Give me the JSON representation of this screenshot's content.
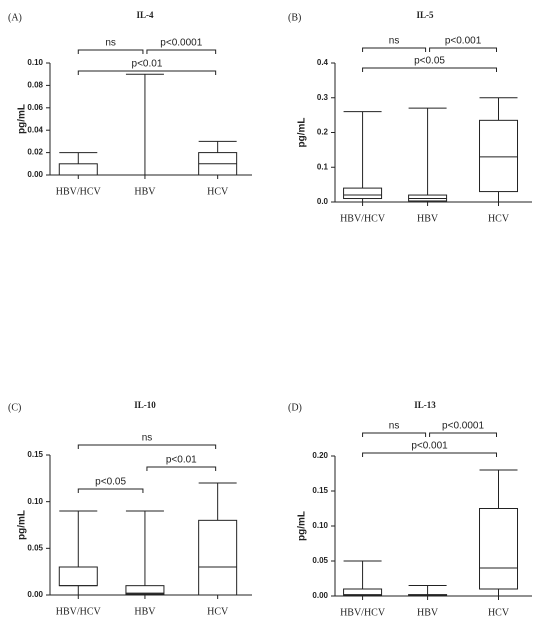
{
  "chart_data": [
    {
      "type": "box",
      "panel": "(A)",
      "title": "IL-4",
      "ylabel": "pg/mL",
      "color": "#222222",
      "categories": [
        "HBV/HCV",
        "HBV",
        "HCV"
      ],
      "boxes": [
        {
          "min": 0,
          "q1": 0,
          "median": 0,
          "q3": 0.01,
          "max": 0.02
        },
        {
          "min": 0,
          "q1": 0,
          "median": 0,
          "q3": 0,
          "max": 0.09
        },
        {
          "min": 0,
          "q1": 0,
          "median": 0.01,
          "q3": 0.02,
          "max": 0.03
        }
      ],
      "ylim": [
        0,
        0.1
      ],
      "yticks": [
        {
          "value": 0,
          "label": "0.00"
        },
        {
          "value": 0.02,
          "label": "0.02"
        },
        {
          "value": 0.04,
          "label": "0.04"
        },
        {
          "value": 0.06,
          "label": "0.06"
        },
        {
          "value": 0.08,
          "label": "0.08"
        },
        {
          "value": 0.1,
          "label": "0.10"
        }
      ],
      "annotations": [
        {
          "from": 0,
          "to": 1,
          "text": "ns"
        },
        {
          "from": 1,
          "to": 2,
          "text": "p<0.0001"
        },
        {
          "from": 0,
          "to": 2,
          "text": "p<0.01"
        }
      ]
    },
    {
      "type": "box",
      "panel": "(B)",
      "title": "IL-5",
      "ylabel": "pg/mL",
      "color": "#222222",
      "categories": [
        "HBV/HCV",
        "HBV",
        "HCV"
      ],
      "boxes": [
        {
          "min": 0,
          "q1": 0.01,
          "median": 0.02,
          "q3": 0.04,
          "max": 0.26
        },
        {
          "min": 0,
          "q1": 0.003,
          "median": 0.01,
          "q3": 0.02,
          "max": 0.27
        },
        {
          "min": 0,
          "q1": 0.03,
          "median": 0.13,
          "q3": 0.235,
          "max": 0.3
        }
      ],
      "ylim": [
        0,
        0.4
      ],
      "yticks": [
        {
          "value": 0,
          "label": "0.0"
        },
        {
          "value": 0.1,
          "label": "0.1"
        },
        {
          "value": 0.2,
          "label": "0.2"
        },
        {
          "value": 0.3,
          "label": "0.3"
        },
        {
          "value": 0.4,
          "label": "0.4"
        }
      ],
      "annotations": [
        {
          "from": 0,
          "to": 1,
          "text": "ns"
        },
        {
          "from": 1,
          "to": 2,
          "text": "p<0.001"
        },
        {
          "from": 0,
          "to": 2,
          "text": "p<0.05"
        }
      ]
    },
    {
      "type": "box",
      "panel": "(C)",
      "title": "IL-10",
      "ylabel": "pg/mL",
      "color": "#222222",
      "categories": [
        "HBV/HCV",
        "HBV",
        "HCV"
      ],
      "boxes": [
        {
          "min": 0,
          "q1": 0.01,
          "median": 0.01,
          "q3": 0.03,
          "max": 0.09
        },
        {
          "min": 0,
          "q1": 0.001,
          "median": 0.002,
          "q3": 0.01,
          "max": 0.09
        },
        {
          "min": 0,
          "q1": 0,
          "median": 0.03,
          "q3": 0.08,
          "max": 0.12
        }
      ],
      "ylim": [
        0,
        0.15
      ],
      "yticks": [
        {
          "value": 0,
          "label": "0.00"
        },
        {
          "value": 0.05,
          "label": "0.05"
        },
        {
          "value": 0.1,
          "label": "0.10"
        },
        {
          "value": 0.15,
          "label": "0.15"
        }
      ],
      "annotations": [
        {
          "from": 0,
          "to": 2,
          "text": "ns"
        },
        {
          "from": 1,
          "to": 2,
          "text": "p<0.01"
        },
        {
          "from": 0,
          "to": 1,
          "text": "p<0.05"
        }
      ]
    },
    {
      "type": "box",
      "panel": "(D)",
      "title": "IL-13",
      "ylabel": "pg/mL",
      "color": "#222222",
      "categories": [
        "HBV/HCV",
        "HBV",
        "HCV"
      ],
      "boxes": [
        {
          "min": 0,
          "q1": 0.001,
          "median": 0.002,
          "q3": 0.01,
          "max": 0.05
        },
        {
          "min": 0,
          "q1": 0,
          "median": 0.001,
          "q3": 0.002,
          "max": 0.015
        },
        {
          "min": 0,
          "q1": 0.01,
          "median": 0.04,
          "q3": 0.125,
          "max": 0.18
        }
      ],
      "ylim": [
        0,
        0.2
      ],
      "yticks": [
        {
          "value": 0,
          "label": "0.00"
        },
        {
          "value": 0.05,
          "label": "0.05"
        },
        {
          "value": 0.1,
          "label": "0.10"
        },
        {
          "value": 0.15,
          "label": "0.15"
        },
        {
          "value": 0.2,
          "label": "0.20"
        }
      ],
      "annotations": [
        {
          "from": 0,
          "to": 1,
          "text": "ns"
        },
        {
          "from": 1,
          "to": 2,
          "text": "p<0.0001"
        },
        {
          "from": 0,
          "to": 2,
          "text": "p<0.001"
        }
      ]
    }
  ]
}
